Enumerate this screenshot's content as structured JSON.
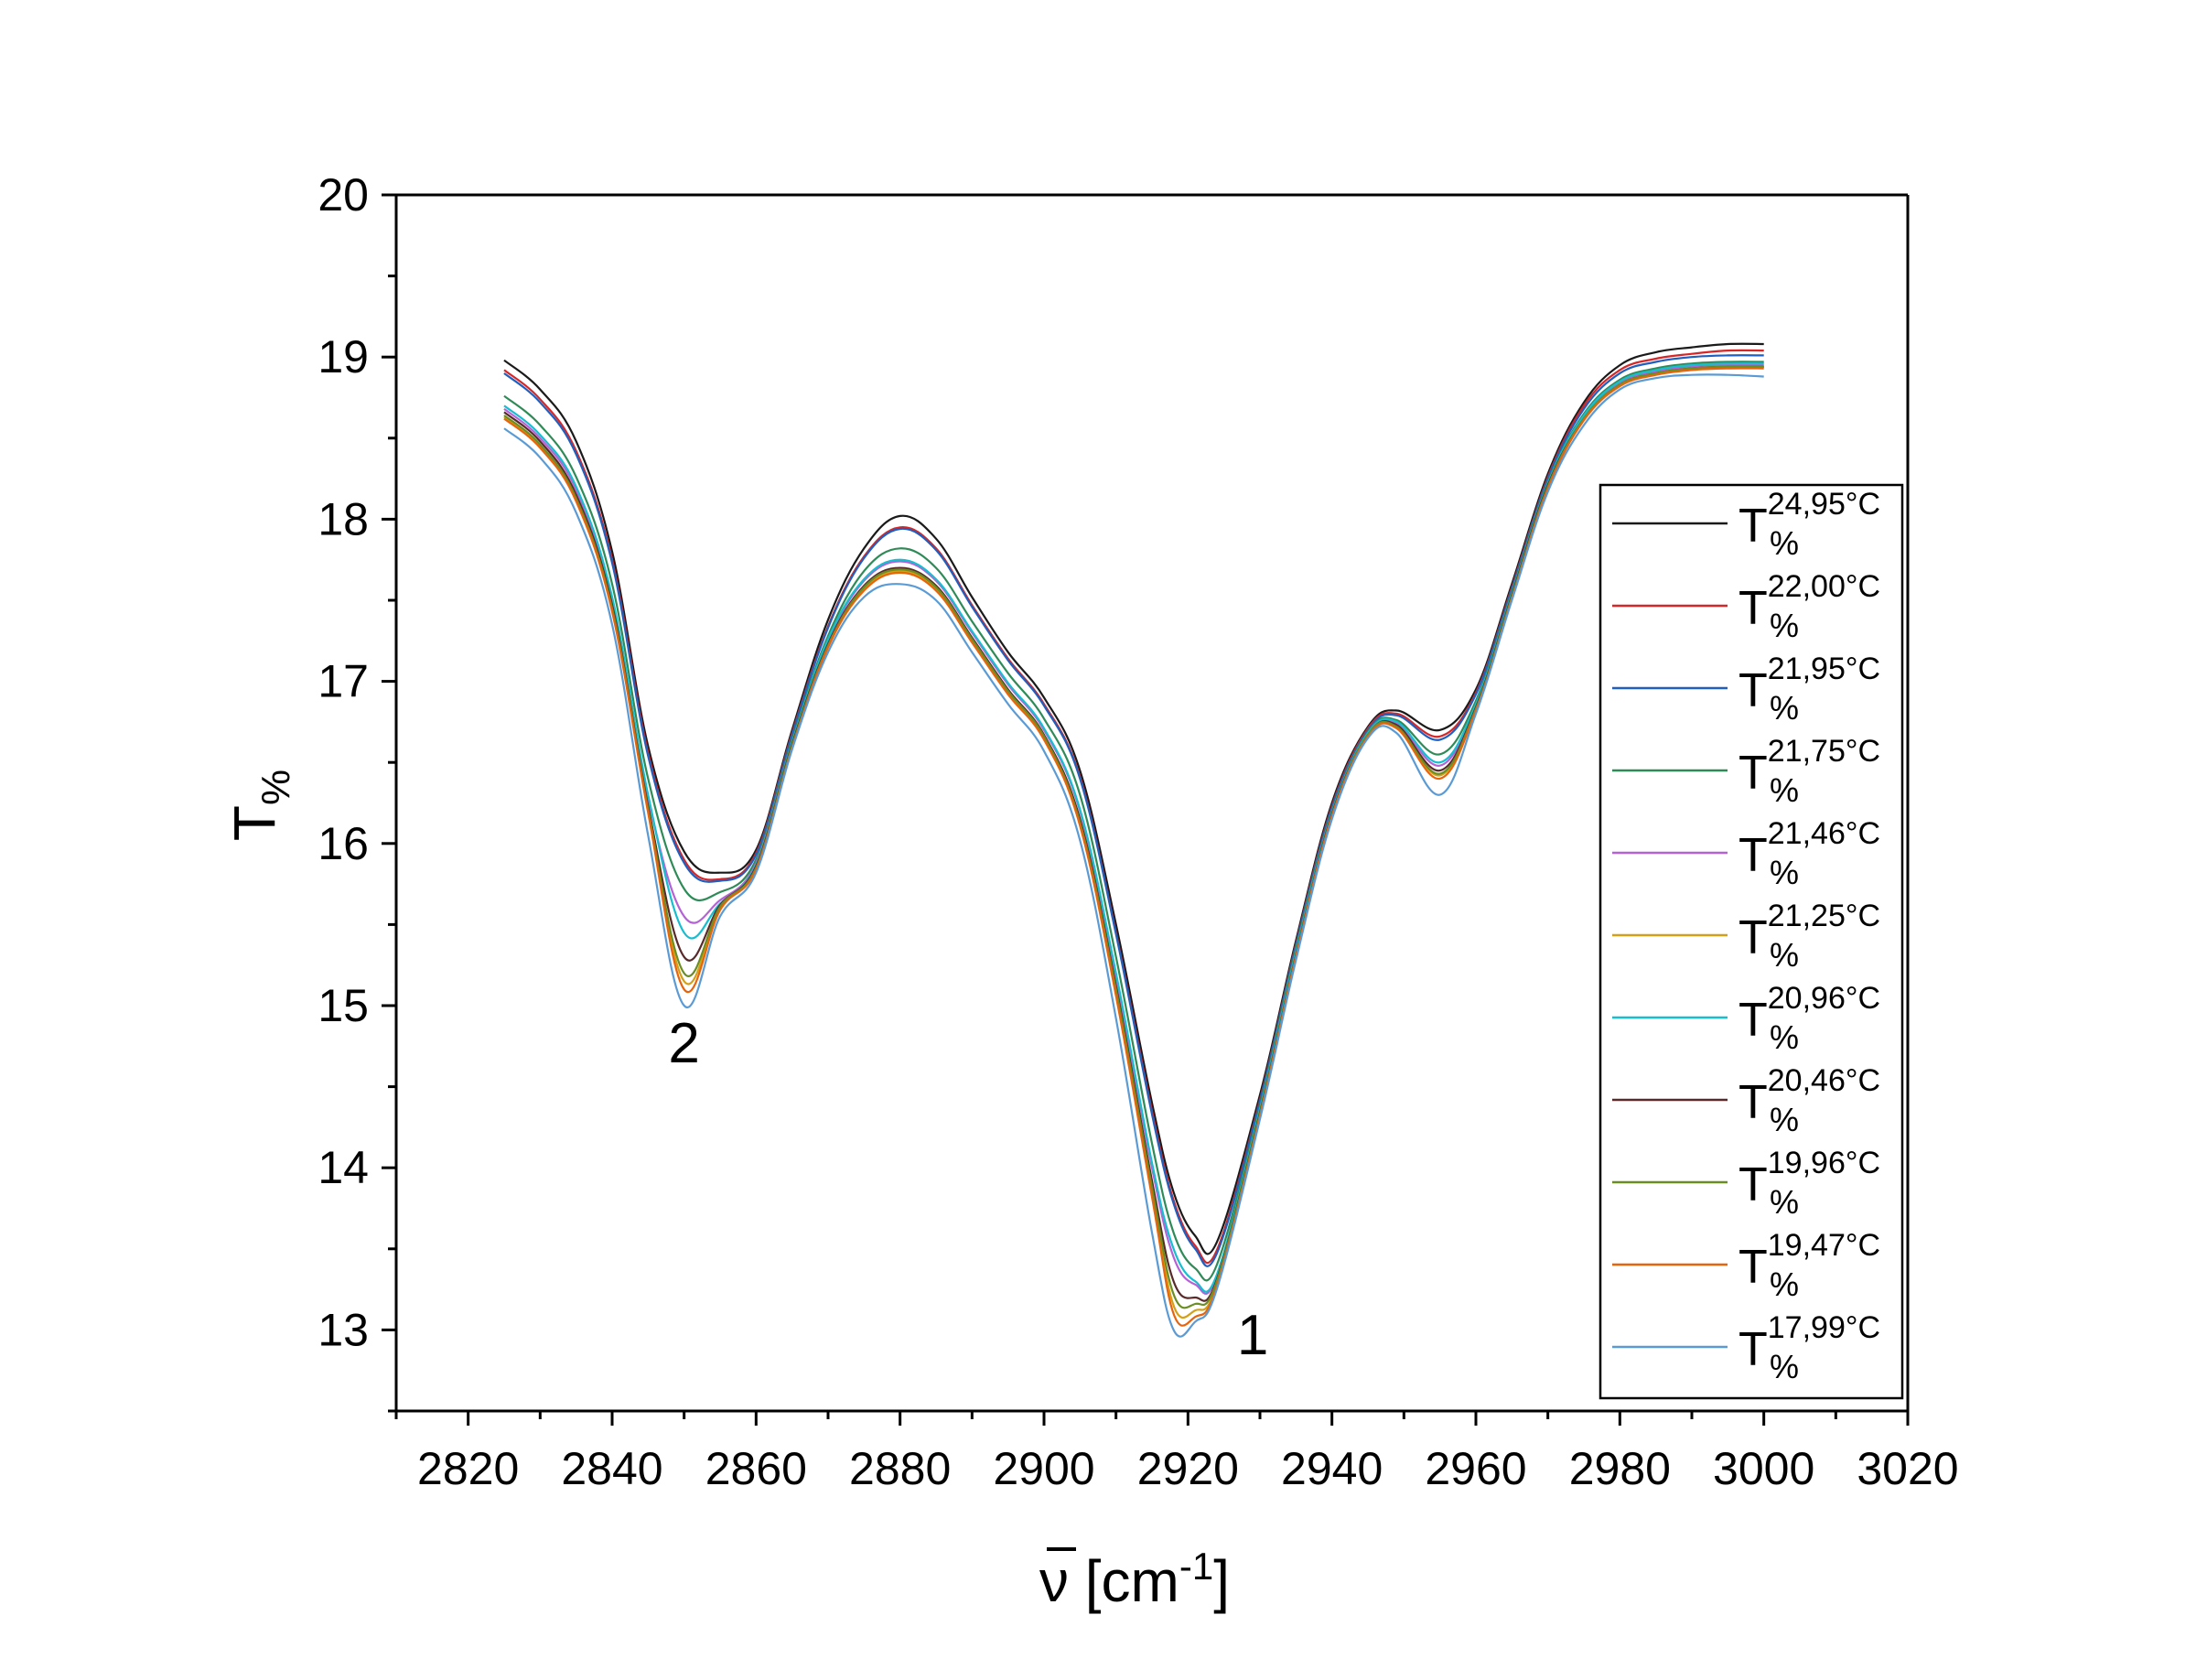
{
  "chart_data": {
    "type": "line",
    "xlabel": "ν [cm⁻¹]",
    "xlabel_parts": {
      "symbol": "ν",
      "open": " [cm",
      "sup": "-1",
      "close": "]"
    },
    "ylabel": "T%",
    "ylabel_parts": {
      "main": "T",
      "sub": "%"
    },
    "xlim": [
      2810,
      3020
    ],
    "ylim": [
      12.5,
      20
    ],
    "xticks": [
      2820,
      2840,
      2860,
      2880,
      2900,
      2920,
      2940,
      2960,
      2980,
      3000,
      3020
    ],
    "yticks": [
      13,
      14,
      15,
      16,
      17,
      18,
      19,
      20
    ],
    "grid": false,
    "legend_position": "right",
    "annotations": [
      {
        "text": "2",
        "x": 2850,
        "y": 14.65
      },
      {
        "text": "1",
        "x": 2929,
        "y": 12.85
      }
    ],
    "x": [
      2825,
      2830,
      2835,
      2840,
      2845,
      2850,
      2855,
      2860,
      2865,
      2870,
      2875,
      2880,
      2885,
      2890,
      2895,
      2900,
      2905,
      2910,
      2915,
      2918,
      2921,
      2924,
      2930,
      2935,
      2940,
      2945,
      2949,
      2955,
      2960,
      2965,
      2970,
      2975,
      2980,
      2985,
      2990,
      2995,
      3000
    ],
    "series": [
      {
        "name": "T%",
        "temp": "24,95°C",
        "color": "#1a1a1a",
        "values": [
          18.98,
          18.8,
          18.48,
          17.8,
          16.6,
          15.95,
          15.82,
          15.96,
          16.7,
          17.38,
          17.82,
          18.02,
          17.88,
          17.52,
          17.18,
          16.9,
          16.45,
          15.5,
          14.4,
          13.85,
          13.58,
          13.54,
          14.45,
          15.4,
          16.25,
          16.72,
          16.82,
          16.7,
          16.95,
          17.6,
          18.28,
          18.72,
          18.95,
          19.03,
          19.06,
          19.08,
          19.08
        ]
      },
      {
        "name": "T%",
        "temp": "22,00°C",
        "color": "#d62728",
        "values": [
          18.92,
          18.74,
          18.42,
          17.75,
          16.56,
          15.9,
          15.78,
          15.94,
          16.68,
          17.34,
          17.77,
          17.95,
          17.82,
          17.47,
          17.14,
          16.86,
          16.41,
          15.45,
          14.35,
          13.8,
          13.52,
          13.49,
          14.42,
          15.38,
          16.23,
          16.71,
          16.8,
          16.66,
          16.93,
          17.58,
          18.26,
          18.7,
          18.92,
          18.99,
          19.02,
          19.04,
          19.04
        ]
      },
      {
        "name": "T%",
        "temp": "21,95°C",
        "color": "#1f5fbf",
        "values": [
          18.9,
          18.72,
          18.4,
          17.73,
          16.54,
          15.88,
          15.77,
          15.93,
          16.67,
          17.33,
          17.76,
          17.94,
          17.81,
          17.46,
          17.13,
          16.85,
          16.4,
          15.44,
          14.33,
          13.78,
          13.5,
          13.47,
          14.41,
          15.37,
          16.22,
          16.7,
          16.79,
          16.64,
          16.92,
          17.57,
          18.25,
          18.68,
          18.9,
          18.97,
          19.0,
          19.01,
          19.01
        ]
      },
      {
        "name": "T%",
        "temp": "21,75°C",
        "color": "#2e8b57",
        "values": [
          18.76,
          18.58,
          18.26,
          17.6,
          16.4,
          15.72,
          15.7,
          15.9,
          16.64,
          17.28,
          17.68,
          17.82,
          17.7,
          17.37,
          17.05,
          16.77,
          16.3,
          15.3,
          14.15,
          13.6,
          13.38,
          13.4,
          14.38,
          15.35,
          16.2,
          16.69,
          16.76,
          16.55,
          16.88,
          17.55,
          18.23,
          18.65,
          18.86,
          18.93,
          18.96,
          18.97,
          18.97
        ]
      },
      {
        "name": "T%",
        "temp": "21,46°C",
        "color": "#b462d6",
        "values": [
          18.68,
          18.5,
          18.18,
          17.5,
          16.28,
          15.55,
          15.65,
          15.88,
          16.62,
          17.25,
          17.62,
          17.74,
          17.62,
          17.3,
          16.98,
          16.7,
          16.2,
          15.18,
          14.0,
          13.45,
          13.28,
          13.33,
          14.35,
          15.32,
          16.18,
          16.68,
          16.74,
          16.48,
          16.85,
          17.53,
          18.21,
          18.63,
          18.84,
          18.91,
          18.94,
          18.95,
          18.95
        ]
      },
      {
        "name": "T%",
        "temp": "21,25°C",
        "color": "#d4a017",
        "values": [
          18.63,
          18.45,
          18.12,
          17.44,
          16.2,
          15.15,
          15.6,
          15.85,
          16.6,
          17.22,
          17.57,
          17.68,
          17.57,
          17.25,
          16.93,
          16.65,
          16.12,
          15.08,
          13.85,
          13.15,
          13.12,
          13.28,
          14.33,
          15.3,
          16.17,
          16.67,
          16.72,
          16.42,
          16.83,
          17.52,
          18.2,
          18.62,
          18.83,
          18.9,
          18.93,
          18.94,
          18.94
        ]
      },
      {
        "name": "T%",
        "temp": "20,96°C",
        "color": "#17becf",
        "values": [
          18.7,
          18.52,
          18.2,
          17.52,
          16.3,
          15.45,
          15.63,
          15.87,
          16.62,
          17.26,
          17.63,
          17.75,
          17.63,
          17.31,
          16.99,
          16.71,
          16.21,
          15.2,
          14.03,
          13.5,
          13.3,
          13.34,
          14.36,
          15.33,
          16.19,
          16.68,
          16.75,
          16.5,
          16.86,
          17.54,
          18.22,
          18.64,
          18.85,
          18.92,
          18.95,
          18.96,
          18.96
        ]
      },
      {
        "name": "T%",
        "temp": "20,46°C",
        "color": "#5a2a2a",
        "values": [
          18.66,
          18.48,
          18.15,
          17.47,
          16.23,
          15.3,
          15.62,
          15.86,
          16.61,
          17.23,
          17.59,
          17.7,
          17.59,
          17.27,
          16.95,
          16.67,
          16.15,
          15.12,
          13.92,
          13.3,
          13.2,
          13.31,
          14.34,
          15.31,
          16.18,
          16.67,
          16.73,
          16.45,
          16.84,
          17.53,
          18.21,
          18.62,
          18.83,
          18.9,
          18.93,
          18.94,
          18.94
        ]
      },
      {
        "name": "T%",
        "temp": "19,96°C",
        "color": "#6b8e23",
        "values": [
          18.64,
          18.46,
          18.13,
          17.45,
          16.21,
          15.2,
          15.61,
          15.85,
          16.6,
          17.22,
          17.58,
          17.69,
          17.58,
          17.26,
          16.94,
          16.66,
          16.13,
          15.1,
          13.88,
          13.22,
          13.16,
          13.3,
          14.33,
          15.3,
          16.17,
          16.67,
          16.72,
          16.43,
          16.83,
          17.52,
          18.2,
          18.62,
          18.83,
          18.9,
          18.93,
          18.94,
          18.94
        ]
      },
      {
        "name": "T%",
        "temp": "19,47°C",
        "color": "#e8640c",
        "values": [
          18.62,
          18.44,
          18.11,
          17.43,
          16.19,
          15.1,
          15.59,
          15.84,
          16.59,
          17.21,
          17.56,
          17.67,
          17.56,
          17.24,
          16.92,
          16.64,
          16.11,
          15.06,
          13.82,
          13.1,
          13.08,
          13.27,
          14.32,
          15.3,
          16.17,
          16.66,
          16.71,
          16.4,
          16.82,
          17.51,
          18.19,
          18.61,
          18.82,
          18.89,
          18.92,
          18.93,
          18.93
        ]
      },
      {
        "name": "T%",
        "temp": "17,99°C",
        "color": "#5b9bd5",
        "values": [
          18.56,
          18.38,
          18.04,
          17.35,
          16.05,
          15.0,
          15.55,
          15.82,
          16.58,
          17.18,
          17.52,
          17.6,
          17.5,
          17.18,
          16.86,
          16.57,
          16.02,
          14.92,
          13.6,
          13.0,
          13.05,
          13.25,
          14.3,
          15.28,
          16.15,
          16.65,
          16.68,
          16.3,
          16.8,
          17.5,
          18.17,
          18.58,
          18.8,
          18.87,
          18.89,
          18.89,
          18.88
        ]
      }
    ]
  }
}
